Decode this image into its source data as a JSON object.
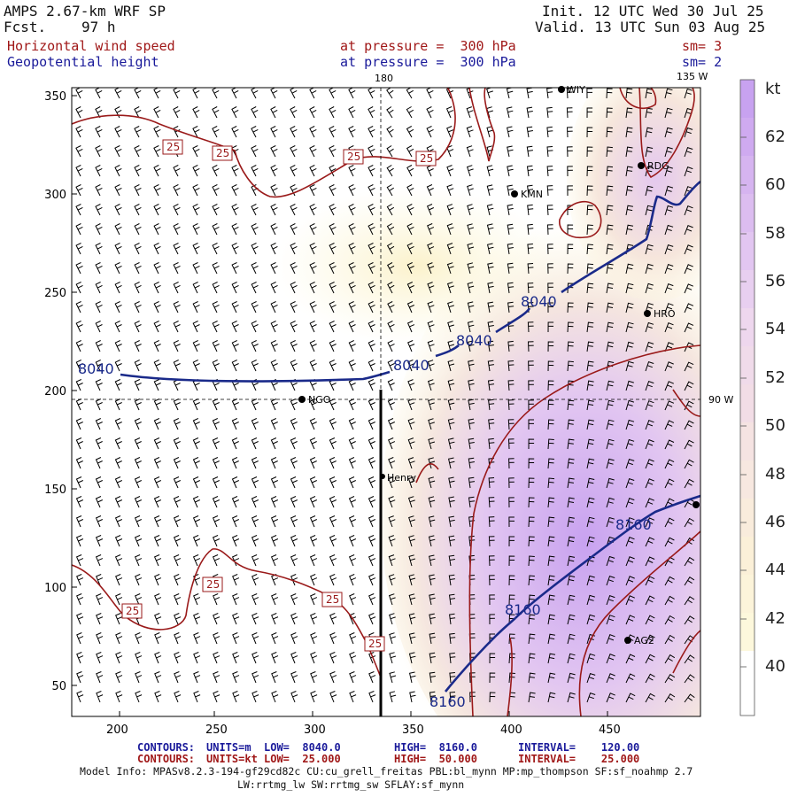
{
  "header": {
    "model": "AMPS 2.67-km WRF SP",
    "forecast_label": "Fcst.",
    "forecast_hours": "97 h",
    "init": "Init. 12 UTC Wed 30 Jul 25",
    "valid": "Valid. 13 UTC Sun 03 Aug 25",
    "field1": "Horizontal wind speed",
    "field1_level": "at pressure =  300 hPa",
    "field1_sm": "sm= 3",
    "field2": "Geopotential height",
    "field2_level": "at pressure =  300 hPa",
    "field2_sm": "sm= 2"
  },
  "map": {
    "lon_labels": {
      "top_180": "180",
      "top_135w": "135 W",
      "right_90w": "90 W"
    },
    "x_ticks": [
      "200",
      "250",
      "300",
      "350",
      "400",
      "450"
    ],
    "y_ticks": [
      "50",
      "100",
      "150",
      "200",
      "250",
      "300",
      "350"
    ],
    "stations": [
      "NGO",
      "Henry",
      "KMN",
      "RDG",
      "HRO",
      "AG2",
      "WIY"
    ],
    "height_contour_labels": [
      "8040",
      "8040",
      "8040",
      "8040",
      "8160",
      "8160",
      "8160"
    ],
    "speed_contour_labels": [
      "25",
      "25",
      "25",
      "25",
      "25",
      "25",
      "25",
      "25"
    ]
  },
  "legend": {
    "unit": "kt",
    "levels": [
      "62",
      "60",
      "58",
      "56",
      "54",
      "52",
      "50",
      "48",
      "46",
      "44",
      "42",
      "40"
    ],
    "colors": [
      "#c8a2f0",
      "#d6b4f0",
      "#e2c6f1",
      "#eed7ee",
      "#f2dde6",
      "#f7e8e0",
      "#fbf0d8",
      "#fdf8dc",
      "#ffffff"
    ]
  },
  "footer": {
    "line1": {
      "name": "CONTOURS:",
      "units": "UNITS=m",
      "low": "LOW=  8040.0",
      "high": "HIGH=  8160.0",
      "interval": "INTERVAL=    120.00"
    },
    "line2": {
      "name": "CONTOURS:",
      "units": "UNITS=kt",
      "low": "LOW=  25.000",
      "high": "HIGH=  50.000",
      "interval": "INTERVAL=    25.000"
    },
    "model_info": "Model Info: MPASv8.2.3-194-gf29cd82c CU:cu_grell_freitas PBL:bl_mynn MP:mp_thompson SF:sf_noahmp 2.7",
    "model_info2": "LW:rrtmg_lw SW:rrtmg_sw SFLAY:sf_mynn"
  },
  "colors": {
    "height_contour": "#1a2a8a",
    "speed_contour": "#9a1a1a",
    "barb": "#000000"
  }
}
